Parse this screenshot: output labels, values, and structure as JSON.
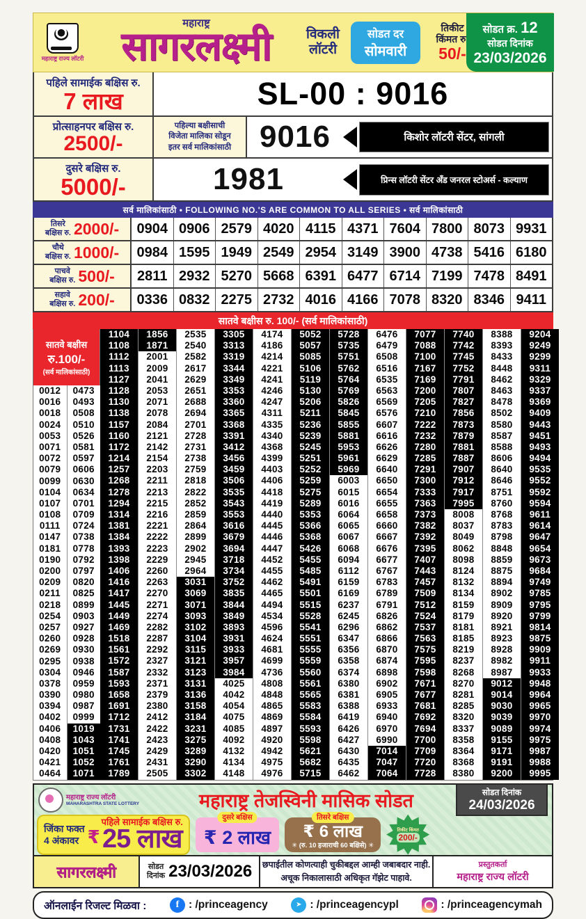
{
  "colors": {
    "brand_magenta": "#b5208a",
    "red": "#e8191f",
    "navy": "#232a7c",
    "sky_blue": "#2fa8e1",
    "green": "#0f9347",
    "band_navy": "#3b3794",
    "band_red": "#e8262c",
    "highlight_cell": "#000000",
    "header_yellow": "#f8ed8f",
    "promo_green": "#d4ebd2",
    "pink": "#f9b4dc",
    "brown": "#96714c",
    "purple": "#7c1d8f"
  },
  "header": {
    "logo_caption": "महाराष्ट्र राज्य लॉटरी",
    "brand_small": "महाराष्ट्र",
    "brand": "सागरलक्ष्मी",
    "weekly_line1": "विकली",
    "weekly_line2": "लॉटरी",
    "day_line1": "सोडत दर",
    "day_line2": "सोमवारी",
    "price_line1": "तिकीट",
    "price_line2": "किंमत रु.",
    "price_value": "50/-",
    "draw_no_label": "सोडत क्र.",
    "draw_no": "12",
    "draw_date_label": "सोडत दिनांक",
    "draw_date": "23/03/2026"
  },
  "prizes_top": {
    "first": {
      "label": "पहिले सामाईक बक्षिस रु.",
      "amount": "7 लाख",
      "result": "SL-00 : 9016"
    },
    "consolation": {
      "label": "प्रोत्साहनपर बक्षिस रु.",
      "amount": "2500/-",
      "note": [
        "पहिल्या बक्षीसाची",
        "विजेता मालिका सोडून",
        "इतर सर्व मालिकांसाठी"
      ],
      "result": "9016",
      "seller": "किशोर लॉटरी सेंटर, सांगली"
    },
    "second": {
      "label": "दुसरे बक्षिस रु.",
      "amount": "5000/-",
      "result": "1981",
      "seller": "प्रिन्स लॉटरी सेंटर अँड जनरल स्टोअर्स - कल्याण"
    }
  },
  "common_band": "सर्व मालिकांसाठी  •  FOLLOWING NO.'S ARE COMMON TO ALL SERIES  •  सर्व मालिकांसाठी",
  "prize_rows": [
    {
      "name": "तिसरे",
      "suffix": "बक्षिस रु.",
      "amount": "2000/-",
      "numbers": [
        "0904",
        "0906",
        "2579",
        "4020",
        "4115",
        "4371",
        "7604",
        "7800",
        "8073",
        "9931"
      ]
    },
    {
      "name": "चौथे",
      "suffix": "बक्षिस रु.",
      "amount": "1000/-",
      "numbers": [
        "0984",
        "1595",
        "1949",
        "2549",
        "2954",
        "3149",
        "3900",
        "4738",
        "5416",
        "6180"
      ]
    },
    {
      "name": "पाचवे",
      "suffix": "बक्षिस रु.",
      "amount": "500/-",
      "numbers": [
        "2811",
        "2932",
        "5270",
        "5668",
        "6391",
        "6477",
        "6714",
        "7199",
        "7478",
        "8491"
      ]
    },
    {
      "name": "सहावे",
      "suffix": "बक्षिस रु.",
      "amount": "200/-",
      "numbers": [
        "0336",
        "0832",
        "2275",
        "2732",
        "4016",
        "4166",
        "7078",
        "8320",
        "8346",
        "9411"
      ]
    }
  ],
  "seventh": {
    "band": "सातवे बक्षीस रु. 100/-  (सर्व मालिकांसाठी)",
    "label_line1": "सातवे बक्षीस",
    "label_line2": "रु.100/-",
    "label_line3": "(सर्व मालिकांसाठी)",
    "columns": [
      {
        "narrow": true,
        "black": null,
        "values": [
          "0012",
          "0016",
          "0018",
          "0024",
          "0053",
          "0071",
          "0072",
          "0079",
          "0099",
          "0104",
          "0107",
          "0108",
          "0111",
          "0147",
          "0181",
          "0190",
          "0200",
          "0209",
          "0211",
          "0218",
          "0254",
          "0257",
          "0260",
          "0269",
          "0295",
          "0304",
          "0378",
          "0390",
          "0394",
          "0402",
          "0406",
          "0408",
          "0420",
          "0421",
          "0464"
        ]
      },
      {
        "narrow": true,
        "black": [
          31,
          35
        ],
        "values": [
          "0473",
          "0493",
          "0508",
          "0510",
          "0526",
          "0581",
          "0597",
          "0606",
          "0630",
          "0634",
          "0701",
          "0709",
          "0724",
          "0738",
          "0778",
          "0792",
          "0797",
          "0820",
          "0825",
          "0899",
          "0903",
          "0927",
          "0928",
          "0930",
          "0938",
          "0946",
          "0959",
          "0980",
          "0987",
          "0999",
          "1019",
          "1043",
          "1051",
          "1052",
          "1071"
        ]
      },
      {
        "narrow": false,
        "black": [
          1,
          40
        ],
        "values": [
          "1104",
          "1108",
          "1112",
          "1113",
          "1127",
          "1128",
          "1130",
          "1138",
          "1157",
          "1160",
          "1172",
          "1214",
          "1257",
          "1268",
          "1278",
          "1294",
          "1314",
          "1381",
          "1384",
          "1393",
          "1398",
          "1406",
          "1416",
          "1417",
          "1445",
          "1449",
          "1469",
          "1518",
          "1561",
          "1572",
          "1587",
          "1593",
          "1658",
          "1691",
          "1712",
          "1731",
          "1741",
          "1745",
          "1761",
          "1789"
        ]
      },
      {
        "narrow": false,
        "black": [
          1,
          2
        ],
        "values": [
          "1856",
          "1871",
          "2001",
          "2009",
          "2041",
          "2053",
          "2071",
          "2078",
          "2084",
          "2121",
          "2142",
          "2154",
          "2203",
          "2211",
          "2213",
          "2215",
          "2216",
          "2221",
          "2222",
          "2223",
          "2229",
          "2260",
          "2263",
          "2270",
          "2271",
          "2274",
          "2282",
          "2287",
          "2292",
          "2327",
          "2332",
          "2371",
          "2379",
          "2380",
          "2412",
          "2422",
          "2423",
          "2429",
          "2431",
          "2505"
        ]
      },
      {
        "narrow": false,
        "black": [
          23,
          40
        ],
        "values": [
          "2535",
          "2540",
          "2582",
          "2617",
          "2629",
          "2651",
          "2688",
          "2694",
          "2701",
          "2728",
          "2731",
          "2738",
          "2759",
          "2818",
          "2822",
          "2852",
          "2859",
          "2864",
          "2899",
          "2902",
          "2945",
          "2964",
          "3031",
          "3069",
          "3071",
          "3093",
          "3102",
          "3104",
          "3115",
          "3121",
          "3123",
          "3131",
          "3136",
          "3158",
          "3184",
          "3231",
          "3275",
          "3289",
          "3290",
          "3302"
        ]
      },
      {
        "narrow": false,
        "black": [
          1,
          31
        ],
        "values": [
          "3305",
          "3313",
          "3319",
          "3344",
          "3349",
          "3353",
          "3360",
          "3365",
          "3368",
          "3391",
          "3412",
          "3456",
          "3459",
          "3506",
          "3535",
          "3543",
          "3553",
          "3616",
          "3679",
          "3694",
          "3718",
          "3734",
          "3752",
          "3835",
          "3844",
          "3849",
          "3893",
          "3931",
          "3933",
          "3957",
          "3984",
          "4025",
          "4042",
          "4054",
          "4075",
          "4085",
          "4092",
          "4132",
          "4134",
          "4148"
        ]
      },
      {
        "narrow": false,
        "black": null,
        "values": [
          "4174",
          "4186",
          "4214",
          "4221",
          "4241",
          "4246",
          "4247",
          "4311",
          "4335",
          "4340",
          "4368",
          "4399",
          "4403",
          "4406",
          "4418",
          "4419",
          "4440",
          "4445",
          "4446",
          "4447",
          "4452",
          "4455",
          "4462",
          "4465",
          "4494",
          "4534",
          "4596",
          "4624",
          "4681",
          "4699",
          "4736",
          "4808",
          "4848",
          "4865",
          "4869",
          "4897",
          "4920",
          "4942",
          "4975",
          "4976"
        ]
      },
      {
        "narrow": false,
        "black": [
          1,
          40
        ],
        "values": [
          "5052",
          "5057",
          "5085",
          "5106",
          "5119",
          "5130",
          "5206",
          "5211",
          "5236",
          "5239",
          "5245",
          "5251",
          "5252",
          "5259",
          "5275",
          "5289",
          "5353",
          "5366",
          "5368",
          "5426",
          "5455",
          "5485",
          "5491",
          "5501",
          "5515",
          "5528",
          "5541",
          "5551",
          "5555",
          "5559",
          "5560",
          "5561",
          "5565",
          "5583",
          "5584",
          "5593",
          "5598",
          "5621",
          "5682",
          "5715"
        ]
      },
      {
        "narrow": false,
        "black": [
          1,
          13
        ],
        "values": [
          "5728",
          "5735",
          "5751",
          "5762",
          "5764",
          "5769",
          "5826",
          "5845",
          "5855",
          "5881",
          "5953",
          "5961",
          "5969",
          "6003",
          "6015",
          "6016",
          "6064",
          "6065",
          "6067",
          "6068",
          "6094",
          "6112",
          "6159",
          "6169",
          "6237",
          "6245",
          "6296",
          "6347",
          "6356",
          "6358",
          "6374",
          "6380",
          "6381",
          "6388",
          "6419",
          "6426",
          "6427",
          "6430",
          "6435",
          "6462"
        ]
      },
      {
        "narrow": false,
        "black": [
          38,
          40
        ],
        "values": [
          "6476",
          "6479",
          "6508",
          "6516",
          "6535",
          "6563",
          "6569",
          "6576",
          "6607",
          "6616",
          "6626",
          "6629",
          "6640",
          "6650",
          "6654",
          "6655",
          "6658",
          "6660",
          "6667",
          "6676",
          "6677",
          "6767",
          "6783",
          "6789",
          "6791",
          "6826",
          "6862",
          "6866",
          "6870",
          "6874",
          "6898",
          "6902",
          "6905",
          "6933",
          "6940",
          "6970",
          "6990",
          "7014",
          "7047",
          "7064"
        ]
      },
      {
        "narrow": false,
        "black": [
          1,
          40
        ],
        "values": [
          "7077",
          "7088",
          "7100",
          "7167",
          "7169",
          "7200",
          "7205",
          "7210",
          "7222",
          "7232",
          "7280",
          "7285",
          "7291",
          "7300",
          "7333",
          "7363",
          "7373",
          "7382",
          "7392",
          "7395",
          "7407",
          "7443",
          "7457",
          "7509",
          "7512",
          "7524",
          "7537",
          "7563",
          "7575",
          "7595",
          "7598",
          "7671",
          "7677",
          "7681",
          "7692",
          "7694",
          "7700",
          "7709",
          "7720",
          "7728"
        ]
      },
      {
        "narrow": false,
        "black": [
          1,
          16
        ],
        "values": [
          "7740",
          "7742",
          "7745",
          "7752",
          "7791",
          "7807",
          "7827",
          "7856",
          "7873",
          "7879",
          "7881",
          "7887",
          "7907",
          "7912",
          "7917",
          "7995",
          "8008",
          "8037",
          "8049",
          "8062",
          "8098",
          "8124",
          "8132",
          "8134",
          "8159",
          "8179",
          "8181",
          "8185",
          "8219",
          "8237",
          "8268",
          "8270",
          "8281",
          "8285",
          "8320",
          "8337",
          "8358",
          "8364",
          "8368",
          "8380"
        ]
      },
      {
        "narrow": false,
        "black": [
          32,
          40
        ],
        "values": [
          "8388",
          "8393",
          "8433",
          "8448",
          "8462",
          "8463",
          "8478",
          "8502",
          "8580",
          "8587",
          "8588",
          "8606",
          "8640",
          "8646",
          "8751",
          "8760",
          "8768",
          "8783",
          "8798",
          "8848",
          "8859",
          "8875",
          "8894",
          "8902",
          "8909",
          "8920",
          "8921",
          "8923",
          "8928",
          "8982",
          "8987",
          "9012",
          "9014",
          "9030",
          "9039",
          "9089",
          "9155",
          "9171",
          "9191",
          "9200"
        ]
      },
      {
        "narrow": false,
        "black": [
          1,
          40
        ],
        "values": [
          "9204",
          "9249",
          "9299",
          "9311",
          "9329",
          "9337",
          "9369",
          "9409",
          "9443",
          "9451",
          "9493",
          "9494",
          "9535",
          "9552",
          "9592",
          "9594",
          "9611",
          "9614",
          "9647",
          "9654",
          "9673",
          "9684",
          "9749",
          "9785",
          "9795",
          "9799",
          "9814",
          "9875",
          "9909",
          "9911",
          "9933",
          "9948",
          "9964",
          "9965",
          "9970",
          "9974",
          "9975",
          "9987",
          "9988",
          "9995"
        ]
      }
    ]
  },
  "promo": {
    "logo_caption_line1": "महाराष्ट्र राज्य लॉटरी",
    "logo_caption_line2": "MAHARASHTRA STATE LOTTERY",
    "title": "महाराष्ट्र तेजस्विनी मासिक सोडत",
    "draw_date_label": "सोडत दिनांक",
    "draw_date": "24/03/2026",
    "win_line1": "जिंका फक्त",
    "win_line2": "4 अंकावर",
    "currency": "₹",
    "first_prize_label": "पहिले सामाईक बक्षिस रु.",
    "first_prize_amount": "25 लाख",
    "second_label": "दुसरे बक्षिस",
    "second_amount": "₹ 2 लाख",
    "third_label": "तिसरे बक्षिस",
    "third_amount": "₹ 6 लाख",
    "third_note": "✳ (रु. 10 हजाराची 60 बक्षिसे) ✳",
    "badge_line1": "तिकीट किंमत",
    "badge_line2": "200/-"
  },
  "strip": {
    "brand": "सागरलक्ष्मी",
    "date_label_line1": "सोडत",
    "date_label_line2": "दिनांक",
    "date": "23/03/2026",
    "disclaimer_line1": "छपाईतील कोणत्याही चुकीबद्दल आम्ही जबाबदार नाही.",
    "disclaimer_line2": "अचूक निकालासाठी अधिकृत गॅझेट पाहावे.",
    "presenter_label": "प्रस्तुतकर्ता",
    "presenter": "महाराष्ट्र राज्य लॉटरी"
  },
  "social": {
    "label": "ऑनलाईन रिजल्ट मिळवा :",
    "facebook_glyph": "f",
    "facebook": ": /princeagency",
    "telegram_glyph": "➤",
    "telegram": ": /princeagencypl",
    "instagram": ": /princeagencymah"
  }
}
